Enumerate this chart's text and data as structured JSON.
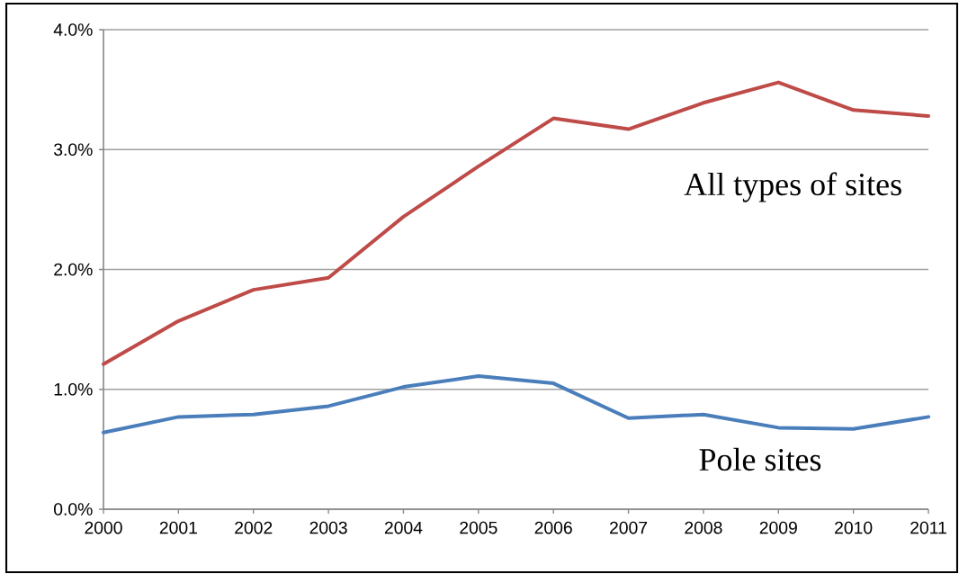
{
  "chart_data": {
    "type": "line",
    "x": [
      2000,
      2001,
      2002,
      2003,
      2004,
      2005,
      2006,
      2007,
      2008,
      2009,
      2010,
      2011
    ],
    "xlim": [
      2000,
      2011
    ],
    "xticks": [
      2000,
      2001,
      2002,
      2003,
      2004,
      2005,
      2006,
      2007,
      2008,
      2009,
      2010,
      2011
    ],
    "ylim": [
      0,
      4
    ],
    "yticks": [
      {
        "value": 0,
        "label": "0.0%"
      },
      {
        "value": 1,
        "label": "1.0%"
      },
      {
        "value": 2,
        "label": "2.0%"
      },
      {
        "value": 3,
        "label": "3.0%"
      },
      {
        "value": 4,
        "label": "4.0%"
      }
    ],
    "grid": "y",
    "marker": "none",
    "line_style": "solid",
    "series": [
      {
        "name": "All types of sites",
        "color": "#be4b48",
        "values": [
          1.21,
          1.57,
          1.83,
          1.93,
          2.44,
          2.86,
          3.26,
          3.17,
          3.39,
          3.56,
          3.33,
          3.28
        ]
      },
      {
        "name": "Pole sites",
        "color": "#4a7ebb",
        "values": [
          0.64,
          0.77,
          0.79,
          0.86,
          1.02,
          1.11,
          1.05,
          0.76,
          0.79,
          0.68,
          0.67,
          0.77
        ]
      }
    ]
  }
}
